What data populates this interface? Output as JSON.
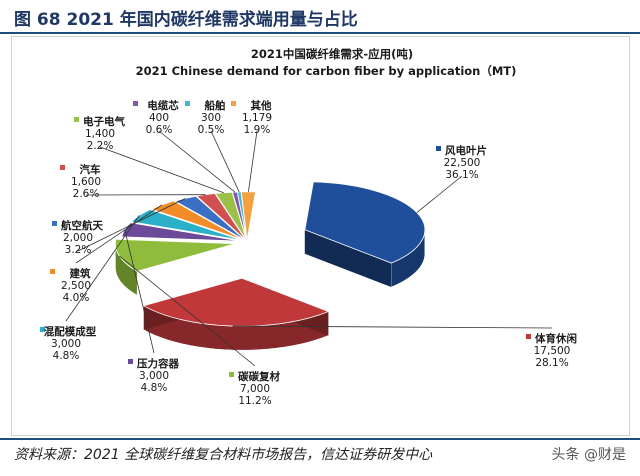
{
  "figure": {
    "title": "图 68 2021 年国内碳纤维需求端用量与占比",
    "source": "资料来源：2021 全球碳纤维复合材料市场报告，信达证券研发中心",
    "watermark": "头条 @财是"
  },
  "chart_data": {
    "type": "pie",
    "title": "2021中国碳纤维需求-应用(吨)",
    "subtitle": "2021 Chinese demand for carbon fiber by application（MT)",
    "style": "exploded-3d",
    "legend": "none",
    "slices": [
      {
        "label": "风电叶片",
        "value": 22500,
        "value_text": "22,500",
        "percent": 36.1,
        "percent_text": "36.1%",
        "color": "#1f4e9a"
      },
      {
        "label": "体育休闲",
        "value": 17500,
        "value_text": "17,500",
        "percent": 28.1,
        "percent_text": "28.1%",
        "color": "#c0383a"
      },
      {
        "label": "碳碳复材",
        "value": 7000,
        "value_text": "7,000",
        "percent": 11.2,
        "percent_text": "11.2%",
        "color": "#8fbc3c"
      },
      {
        "label": "压力容器",
        "value": 3000,
        "value_text": "3,000",
        "percent": 4.8,
        "percent_text": "4.8%",
        "color": "#6b4a9a"
      },
      {
        "label": "混配模成型",
        "value": 3000,
        "value_text": "3,000",
        "percent": 4.8,
        "percent_text": "4.8%",
        "color": "#2bb0c9"
      },
      {
        "label": "建筑",
        "value": 2500,
        "value_text": "2,500",
        "percent": 4.0,
        "percent_text": "4.0%",
        "color": "#f28c28"
      },
      {
        "label": "航空航天",
        "value": 2000,
        "value_text": "2,000",
        "percent": 3.2,
        "percent_text": "3.2%",
        "color": "#3a6fc4"
      },
      {
        "label": "汽车",
        "value": 1600,
        "value_text": "1,600",
        "percent": 2.6,
        "percent_text": "2.6%",
        "color": "#d05050"
      },
      {
        "label": "电子电气",
        "value": 1400,
        "value_text": "1,400",
        "percent": 2.2,
        "percent_text": "2.2%",
        "color": "#9bc048"
      },
      {
        "label": "电缆芯",
        "value": 400,
        "value_text": "400",
        "percent": 0.6,
        "percent_text": "0.6%",
        "color": "#7d5aa8"
      },
      {
        "label": "船舶",
        "value": 300,
        "value_text": "300",
        "percent": 0.5,
        "percent_text": "0.5%",
        "color": "#3fb8d0"
      },
      {
        "label": "其他",
        "value": 1179,
        "value_text": "1,179",
        "percent": 1.9,
        "percent_text": "1.9%",
        "color": "#f5a040"
      }
    ]
  }
}
